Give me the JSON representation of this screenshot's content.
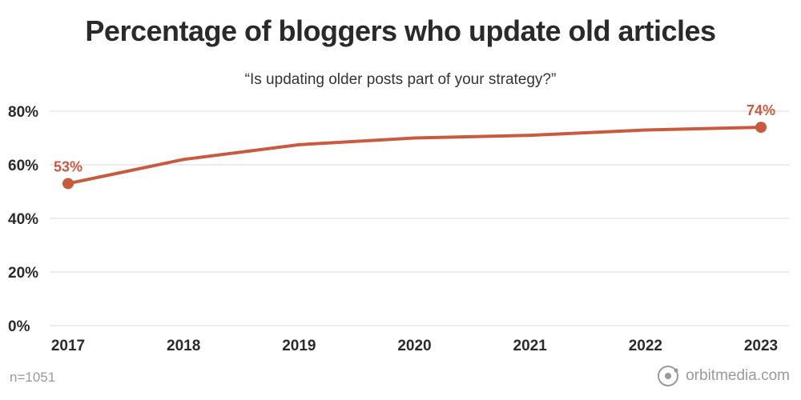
{
  "colors": {
    "line": "#c85b3f",
    "grid": "#e6e6e6",
    "axis_text": "#2b2b2b",
    "muted": "#9a9a9a"
  },
  "footer": {
    "sample_size": "n=1051",
    "brand": "orbitmedia.com",
    "brand_icon": "orbit-logo-icon"
  },
  "chart_data": {
    "type": "line",
    "title": "Percentage of bloggers who update old articles",
    "subtitle": "“Is updating older posts part of your strategy?”",
    "xlabel": "",
    "ylabel": "",
    "categories": [
      "2017",
      "2018",
      "2019",
      "2020",
      "2021",
      "2022",
      "2023"
    ],
    "series": [
      {
        "values": [
          53,
          62,
          67.5,
          70,
          71,
          73,
          74
        ]
      }
    ],
    "ylim": [
      0,
      80
    ],
    "y_ticks": [
      0,
      20,
      40,
      60,
      80
    ],
    "y_tick_labels": [
      "0%",
      "20%",
      "40%",
      "60%",
      "80%"
    ],
    "grid": true,
    "annotations": [
      {
        "index": 0,
        "label": "53%"
      },
      {
        "index": 6,
        "label": "74%"
      }
    ]
  }
}
